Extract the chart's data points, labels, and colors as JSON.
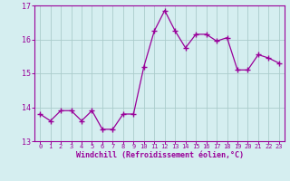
{
  "x": [
    0,
    1,
    2,
    3,
    4,
    5,
    6,
    7,
    8,
    9,
    10,
    11,
    12,
    13,
    14,
    15,
    16,
    17,
    18,
    19,
    20,
    21,
    22,
    23
  ],
  "y": [
    13.8,
    13.6,
    13.9,
    13.9,
    13.6,
    13.9,
    13.35,
    13.35,
    13.8,
    13.8,
    15.2,
    16.25,
    16.85,
    16.25,
    15.75,
    16.15,
    16.15,
    15.95,
    16.05,
    15.1,
    15.1,
    15.55,
    15.45,
    15.3
  ],
  "line_color": "#990099",
  "marker": "+",
  "marker_size": 4,
  "xlabel": "Windchill (Refroidissement éolien,°C)",
  "ylabel": "",
  "ylim": [
    13.0,
    17.0
  ],
  "xlim": [
    -0.5,
    23.5
  ],
  "yticks": [
    13,
    14,
    15,
    16,
    17
  ],
  "xticks": [
    0,
    1,
    2,
    3,
    4,
    5,
    6,
    7,
    8,
    9,
    10,
    11,
    12,
    13,
    14,
    15,
    16,
    17,
    18,
    19,
    20,
    21,
    22,
    23
  ],
  "background_color": "#d5eef0",
  "grid_color": "#aacccc",
  "tick_color": "#990099",
  "label_color": "#990099",
  "spine_color": "#990099",
  "tick_fontsize": 5.0,
  "ylabel_fontsize": 6.0,
  "xlabel_fontsize": 6.0
}
